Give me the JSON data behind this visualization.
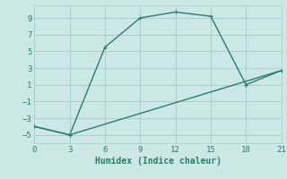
{
  "line1_x": [
    0,
    3,
    6,
    9,
    12,
    15,
    18,
    21
  ],
  "line1_y": [
    -4,
    -5,
    5.5,
    9,
    9.7,
    9.2,
    1.0,
    2.7
  ],
  "line2_x": [
    0,
    3,
    21
  ],
  "line2_y": [
    -4,
    -5,
    2.7
  ],
  "color": "#2a7d6e",
  "bg_color": "#cce8e4",
  "grid_color": "#aacfca",
  "xlabel": "Humidex (Indice chaleur)",
  "xlim": [
    0,
    21
  ],
  "ylim": [
    -6,
    10.5
  ],
  "xticks": [
    0,
    3,
    6,
    9,
    12,
    15,
    18,
    21
  ],
  "yticks": [
    -5,
    -3,
    -1,
    1,
    3,
    5,
    7,
    9
  ]
}
